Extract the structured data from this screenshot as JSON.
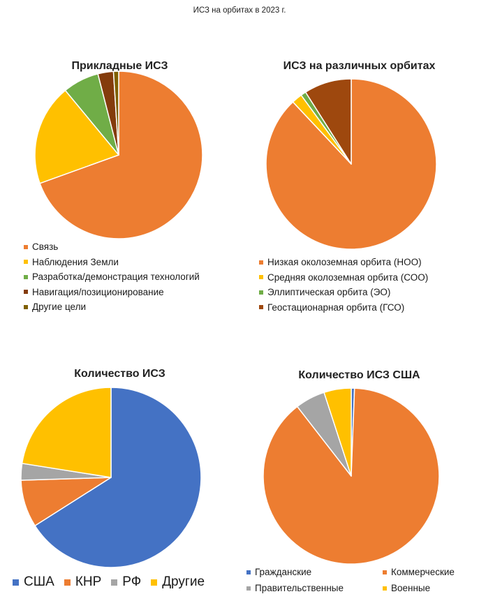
{
  "main_title": "ИСЗ на орбитах в 2023 г.",
  "chart_data": [
    {
      "type": "pie",
      "title": "Прикладные ИСЗ",
      "legend_position": "bottom",
      "categories": [
        "Связь",
        "Наблюдения Земли",
        "Разработка/демонстрация технологий",
        "Навигация/позиционирование",
        "Другие цели"
      ],
      "values": [
        69.5,
        19.5,
        7.0,
        3.0,
        1.0
      ],
      "colors": [
        "#ED7D31",
        "#FFC000",
        "#70AD47",
        "#843C0C",
        "#7F6000"
      ]
    },
    {
      "type": "pie",
      "title": "ИСЗ на различных орбитах",
      "legend_position": "bottom",
      "categories": [
        "Низкая околоземная орбита (НОО)",
        "Средняя околоземная орбита (СОО)",
        "Эллиптическая орбита (ЭО)",
        "Геостационарная орбита (ГСО)"
      ],
      "values": [
        88.0,
        2.0,
        1.0,
        9.0
      ],
      "colors": [
        "#ED7D31",
        "#FFC000",
        "#70AD47",
        "#9E480E"
      ]
    },
    {
      "type": "pie",
      "title": "Количество ИСЗ",
      "legend_position": "bottom",
      "categories": [
        "США",
        "КНР",
        "РФ",
        "Другие"
      ],
      "values": [
        66.0,
        8.5,
        3.0,
        22.5
      ],
      "colors": [
        "#4472C4",
        "#ED7D31",
        "#A5A5A5",
        "#FFC000"
      ]
    },
    {
      "type": "pie",
      "title": "Количество ИСЗ США",
      "legend_position": "bottom",
      "categories": [
        "Гражданские",
        "Коммерческие",
        "Правительственные",
        "Военные"
      ],
      "values": [
        0.6,
        88.9,
        5.5,
        5.0
      ],
      "colors": [
        "#4472C4",
        "#ED7D31",
        "#A5A5A5",
        "#FFC000"
      ]
    }
  ]
}
